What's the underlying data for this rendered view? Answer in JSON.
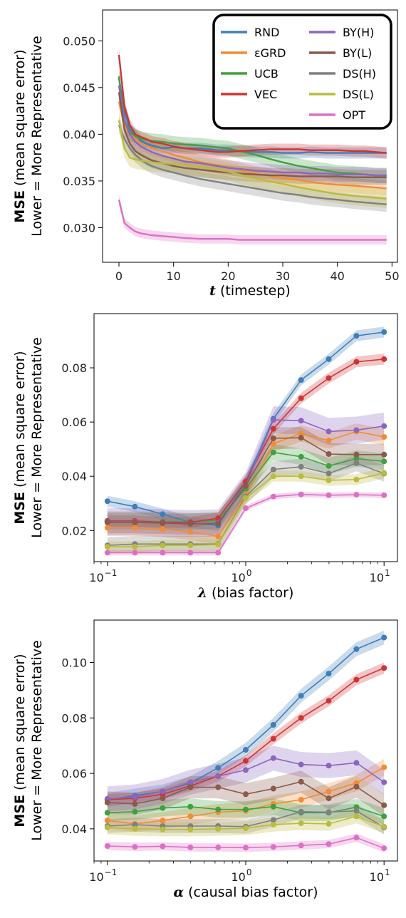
{
  "colors": {
    "RND": "#3f7fb8",
    "εGRD": "#f28c35",
    "UCB": "#3fa142",
    "VEC": "#cf3434",
    "BY(H)": "#8c66bd",
    "BY(L)": "#8a5a4b",
    "DS(H)": "#808080",
    "DS(L)": "#b9bc3c",
    "OPT": "#dd70c4"
  },
  "chart_data": [
    {
      "type": "line",
      "xlabel_bold": "t",
      "xlabel_rest": " (timestep)",
      "ylabel_bold": "MSE",
      "ylabel_rest": " (mean square error)",
      "ylabel_line2": "Lower = More Representative",
      "xlim": [
        -3,
        51
      ],
      "ylim": [
        0.0263,
        0.0533
      ],
      "xscale": "linear",
      "xticks": [
        0,
        10,
        20,
        30,
        40,
        50
      ],
      "xtick_labels": [
        "0",
        "10",
        "20",
        "30",
        "40",
        "50"
      ],
      "yticks": [
        0.03,
        0.035,
        0.04,
        0.045,
        0.05
      ],
      "ytick_labels": [
        "0.030",
        "0.035",
        "0.040",
        "0.045",
        "0.050"
      ],
      "legend": {
        "placement": "top-right",
        "entries": [
          "RND",
          "εGRD",
          "UCB",
          "VEC",
          "BY(H)",
          "BY(L)",
          "DS(H)",
          "DS(L)",
          "OPT"
        ]
      },
      "x": [
        0,
        1,
        2,
        3,
        4,
        5,
        6,
        8,
        10,
        12,
        15,
        18,
        20,
        22,
        25,
        28,
        30,
        33,
        35,
        38,
        40,
        43,
        45,
        47,
        49
      ],
      "series": [
        {
          "name": "RND",
          "values": [
            0.046,
            0.0425,
            0.0405,
            0.04,
            0.0393,
            0.039,
            0.0388,
            0.0385,
            0.0386,
            0.0385,
            0.0385,
            0.0383,
            0.0383,
            0.0382,
            0.0381,
            0.0381,
            0.038,
            0.038,
            0.0381,
            0.038,
            0.038,
            0.038,
            0.038,
            0.038,
            0.038
          ],
          "band": 0.0006
        },
        {
          "name": "εGRD",
          "values": [
            0.0435,
            0.041,
            0.04,
            0.0395,
            0.039,
            0.0388,
            0.0385,
            0.0382,
            0.0378,
            0.0375,
            0.037,
            0.0367,
            0.0365,
            0.0362,
            0.0358,
            0.0355,
            0.0353,
            0.0351,
            0.0349,
            0.0347,
            0.0346,
            0.0345,
            0.0344,
            0.0343,
            0.0342
          ],
          "band": 0.0008
        },
        {
          "name": "UCB",
          "values": [
            0.0462,
            0.0415,
            0.0402,
            0.0398,
            0.0395,
            0.0394,
            0.0393,
            0.0392,
            0.039,
            0.0389,
            0.0388,
            0.0386,
            0.0385,
            0.0382,
            0.0378,
            0.0373,
            0.037,
            0.0366,
            0.0364,
            0.0361,
            0.0359,
            0.0358,
            0.0357,
            0.0356,
            0.0356
          ],
          "band": 0.0008
        },
        {
          "name": "VEC",
          "values": [
            0.0485,
            0.043,
            0.041,
            0.04,
            0.0397,
            0.0395,
            0.0392,
            0.039,
            0.0387,
            0.0385,
            0.0383,
            0.0381,
            0.0381,
            0.0382,
            0.0383,
            0.0384,
            0.0384,
            0.0384,
            0.0383,
            0.0383,
            0.0383,
            0.0382,
            0.0382,
            0.0381,
            0.038
          ],
          "band": 0.0006
        },
        {
          "name": "BY(H)",
          "values": [
            0.0452,
            0.0415,
            0.04,
            0.0392,
            0.0387,
            0.0384,
            0.0381,
            0.0377,
            0.0374,
            0.0371,
            0.0369,
            0.0366,
            0.0364,
            0.0363,
            0.0361,
            0.036,
            0.0359,
            0.0359,
            0.0358,
            0.0358,
            0.0357,
            0.0357,
            0.0357,
            0.0356,
            0.0356
          ],
          "band": 0.0008
        },
        {
          "name": "BY(L)",
          "values": [
            0.0445,
            0.0405,
            0.039,
            0.0382,
            0.0378,
            0.0375,
            0.0372,
            0.0369,
            0.0366,
            0.0364,
            0.0362,
            0.036,
            0.0359,
            0.0358,
            0.0357,
            0.0356,
            0.0356,
            0.0355,
            0.0355,
            0.0355,
            0.0355,
            0.0354,
            0.0354,
            0.0354,
            0.0354
          ],
          "band": 0.0008
        },
        {
          "name": "DS(H)",
          "values": [
            0.041,
            0.0395,
            0.0385,
            0.0378,
            0.0373,
            0.0369,
            0.0366,
            0.0362,
            0.0359,
            0.0356,
            0.0352,
            0.0349,
            0.0347,
            0.0345,
            0.0342,
            0.0339,
            0.0337,
            0.0335,
            0.0333,
            0.0331,
            0.033,
            0.0328,
            0.0327,
            0.0326,
            0.0325
          ],
          "band": 0.0008
        },
        {
          "name": "DS(L)",
          "values": [
            0.0415,
            0.0385,
            0.0375,
            0.0373,
            0.0372,
            0.0371,
            0.037,
            0.0369,
            0.0368,
            0.0367,
            0.0365,
            0.0362,
            0.036,
            0.0357,
            0.0353,
            0.0349,
            0.0347,
            0.0343,
            0.0341,
            0.0338,
            0.0336,
            0.0334,
            0.0333,
            0.0332,
            0.0331
          ],
          "band": 0.001
        },
        {
          "name": "OPT",
          "values": [
            0.033,
            0.0305,
            0.03,
            0.0296,
            0.0294,
            0.0293,
            0.0292,
            0.0291,
            0.029,
            0.0289,
            0.0288,
            0.0288,
            0.0288,
            0.0287,
            0.0287,
            0.0287,
            0.0287,
            0.0287,
            0.0287,
            0.0287,
            0.0287,
            0.0287,
            0.0287,
            0.0287,
            0.0287
          ],
          "band": 0.0005
        }
      ]
    },
    {
      "type": "line",
      "xlabel_bold": "λ",
      "xlabel_rest": " (bias factor)",
      "ylabel_bold": "MSE",
      "ylabel_rest": " (mean square error)",
      "ylabel_line2": "Lower = More Representative",
      "xscale": "log",
      "xlim": [
        0.08,
        12.5
      ],
      "ylim": [
        0.0085,
        0.1
      ],
      "xticks": [
        0.1,
        1,
        10
      ],
      "xtick_labels": [
        [
          "10",
          "−1"
        ],
        [
          "10",
          "0"
        ],
        [
          "10",
          "1"
        ]
      ],
      "yticks": [
        0.02,
        0.04,
        0.06,
        0.08
      ],
      "ytick_labels": [
        "0.02",
        "0.04",
        "0.06",
        "0.08"
      ],
      "x": [
        0.1,
        0.158,
        0.251,
        0.398,
        0.631,
        1.0,
        1.585,
        2.512,
        3.981,
        6.31,
        10.0
      ],
      "series": [
        {
          "name": "RND",
          "values": [
            0.0308,
            0.0288,
            0.026,
            0.023,
            0.0218,
            0.038,
            0.0612,
            0.0755,
            0.0832,
            0.0918,
            0.0932
          ],
          "band": 0.002
        },
        {
          "name": "εGRD",
          "values": [
            0.021,
            0.021,
            0.0205,
            0.0195,
            0.0178,
            0.033,
            0.052,
            0.0558,
            0.0532,
            0.0565,
            0.0545
          ],
          "band": 0.003
        },
        {
          "name": "UCB",
          "values": [
            0.0235,
            0.0235,
            0.0232,
            0.0232,
            0.0238,
            0.0355,
            0.0488,
            0.0472,
            0.0438,
            0.0465,
            0.0455
          ],
          "band": 0.003
        },
        {
          "name": "VEC",
          "values": [
            0.0235,
            0.0235,
            0.023,
            0.023,
            0.0245,
            0.038,
            0.0575,
            0.0688,
            0.0762,
            0.0822,
            0.0832
          ],
          "band": 0.002
        },
        {
          "name": "BY(H)",
          "values": [
            0.0232,
            0.0232,
            0.0228,
            0.0225,
            0.0228,
            0.0365,
            0.0608,
            0.0605,
            0.0565,
            0.057,
            0.0585
          ],
          "band": 0.005
        },
        {
          "name": "BY(L)",
          "values": [
            0.023,
            0.023,
            0.0227,
            0.0224,
            0.0225,
            0.0365,
            0.054,
            0.0542,
            0.0482,
            0.048,
            0.048
          ],
          "band": 0.004
        },
        {
          "name": "DS(H)",
          "values": [
            0.0145,
            0.015,
            0.015,
            0.015,
            0.015,
            0.0325,
            0.0425,
            0.0435,
            0.041,
            0.0448,
            0.041
          ],
          "band": 0.003
        },
        {
          "name": "DS(L)",
          "values": [
            0.014,
            0.014,
            0.0145,
            0.0145,
            0.0148,
            0.032,
            0.04,
            0.04,
            0.0385,
            0.0388,
            0.0412
          ],
          "band": 0.002
        },
        {
          "name": "OPT",
          "values": [
            0.0118,
            0.0118,
            0.0118,
            0.0118,
            0.0118,
            0.0282,
            0.0325,
            0.0333,
            0.033,
            0.0332,
            0.033
          ],
          "band": 0.001
        }
      ]
    },
    {
      "type": "line",
      "xlabel_bold": "α",
      "xlabel_rest": " (causal bias factor)",
      "ylabel_bold": "MSE",
      "ylabel_rest": " (mean square error)",
      "ylabel_line2": "Lower = More Representative",
      "xscale": "log",
      "xlim": [
        0.08,
        12.5
      ],
      "ylim": [
        0.0284,
        0.1153
      ],
      "xticks": [
        0.1,
        1,
        10
      ],
      "xtick_labels": [
        [
          "10",
          "−1"
        ],
        [
          "10",
          "0"
        ],
        [
          "10",
          "1"
        ]
      ],
      "yticks": [
        0.04,
        0.06,
        0.08,
        0.1
      ],
      "ytick_labels": [
        "0.04",
        "0.06",
        "0.08",
        "0.10"
      ],
      "x": [
        0.1,
        0.158,
        0.251,
        0.398,
        0.631,
        1.0,
        1.585,
        2.512,
        3.981,
        6.31,
        10.0
      ],
      "series": [
        {
          "name": "RND",
          "values": [
            0.0505,
            0.052,
            0.0535,
            0.0565,
            0.062,
            0.0685,
            0.0775,
            0.088,
            0.096,
            0.1048,
            0.109
          ],
          "band": 0.0025
        },
        {
          "name": "εGRD",
          "values": [
            0.043,
            0.0418,
            0.043,
            0.0445,
            0.046,
            0.0465,
            0.049,
            0.0505,
            0.0535,
            0.0565,
            0.0622
          ],
          "band": 0.003
        },
        {
          "name": "UCB",
          "values": [
            0.0458,
            0.0462,
            0.0475,
            0.048,
            0.047,
            0.047,
            0.048,
            0.0458,
            0.0458,
            0.0478,
            0.0445
          ],
          "band": 0.003
        },
        {
          "name": "VEC",
          "values": [
            0.0505,
            0.051,
            0.0525,
            0.0555,
            0.059,
            0.0645,
            0.0725,
            0.08,
            0.0862,
            0.0938,
            0.098
          ],
          "band": 0.002
        },
        {
          "name": "BY(H)",
          "values": [
            0.0508,
            0.0515,
            0.0535,
            0.0568,
            0.059,
            0.0612,
            0.0655,
            0.0632,
            0.0628,
            0.0638,
            0.0568
          ],
          "band": 0.0045
        },
        {
          "name": "BY(L)",
          "values": [
            0.0495,
            0.049,
            0.051,
            0.055,
            0.055,
            0.0525,
            0.0545,
            0.057,
            0.051,
            0.0552,
            0.0485
          ],
          "band": 0.004
        },
        {
          "name": "DS(H)",
          "values": [
            0.041,
            0.0415,
            0.041,
            0.041,
            0.041,
            0.0408,
            0.0432,
            0.0462,
            0.046,
            0.0465,
            0.0405
          ],
          "band": 0.0025
        },
        {
          "name": "DS(L)",
          "values": [
            0.0405,
            0.04,
            0.0398,
            0.0398,
            0.04,
            0.0402,
            0.0415,
            0.042,
            0.0418,
            0.0445,
            0.0408
          ],
          "band": 0.0025
        },
        {
          "name": "OPT",
          "values": [
            0.0338,
            0.0335,
            0.0337,
            0.0333,
            0.0333,
            0.0332,
            0.0335,
            0.034,
            0.0345,
            0.0368,
            0.033
          ],
          "band": 0.0015
        }
      ]
    }
  ]
}
